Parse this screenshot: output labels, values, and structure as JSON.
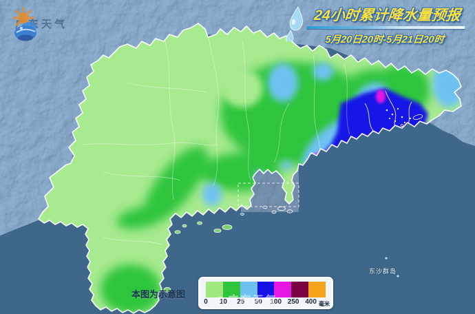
{
  "brand": {
    "name": "广东天气"
  },
  "header": {
    "title": "24小时累计降水量预报",
    "subtitle": "5月20日20时-5月21日20时"
  },
  "map": {
    "island_label": "东沙群岛",
    "disclaimer": "本图为示意图",
    "watermark": "◎广东天气",
    "colors": {
      "sea": "#3F678A",
      "neighbor_terrain": "#5F8CBA",
      "estuary_water": "#547495",
      "province_border": "#FFFFFF"
    }
  },
  "legend": {
    "unit": "毫米",
    "ticks": [
      "0",
      "10",
      "25",
      "50",
      "100",
      "250",
      "400"
    ],
    "colors": [
      "#9FE87E",
      "#2FC53C",
      "#6EC2F2",
      "#1512E6",
      "#E619E2",
      "#780240",
      "#F5A41E"
    ],
    "bins_mm": [
      [
        0,
        10
      ],
      [
        10,
        25
      ],
      [
        25,
        50
      ],
      [
        50,
        100
      ],
      [
        100,
        250
      ],
      [
        250,
        400
      ],
      [
        400,
        null
      ]
    ]
  }
}
